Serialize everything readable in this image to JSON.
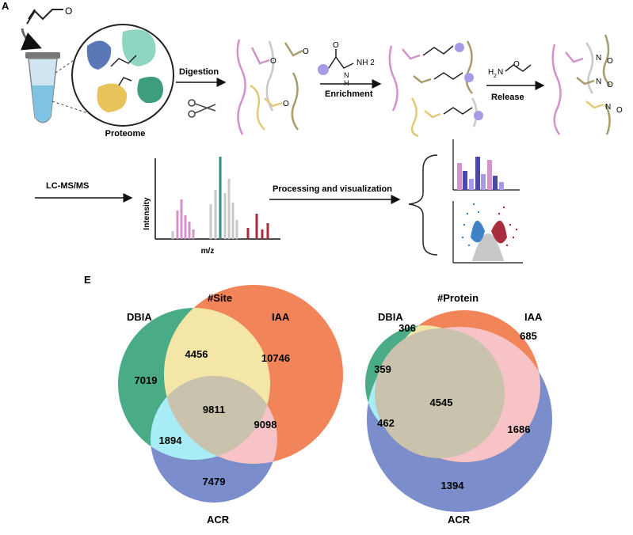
{
  "panel_a": {
    "label": "A",
    "proteome_label": "Proteome",
    "step_digestion": "Digestion",
    "step_enrichment": "Enrichment",
    "step_release": "Release",
    "step_lcms": "LC-MS/MS",
    "step_processing": "Processing and visualization",
    "axis_intensity": "Intensity",
    "axis_mz": "m/z",
    "hydrazine_h": "H",
    "hydrazine_n": "N",
    "hydrazine_nh2": "NH 2",
    "hydroxylamine_h2n": "H",
    "hydroxylamine_2": "2",
    "hydroxylamine_n": "N",
    "hydroxylamine_o": "O",
    "oxime_label": "N",
    "oxime_o": "O",
    "colors": {
      "pink": "#d392c9",
      "purple": "#a99ae8",
      "teal": "#2b8f86",
      "olive": "#a79c6e",
      "gold": "#e3c979",
      "red": "#a72c3c"
    }
  },
  "panel_e": {
    "label": "E",
    "venns": [
      {
        "title": "#Site",
        "set_labels": {
          "a": "DBIA",
          "b": "IAA",
          "c": "ACR"
        },
        "regions": {
          "a_only": "7019",
          "b_only": "10746",
          "c_only": "7479",
          "ab": "4456",
          "bc": "9098",
          "ac": "1894",
          "abc": "9811"
        }
      },
      {
        "title": "#Protein",
        "set_labels": {
          "a": "DBIA",
          "b": "IAA",
          "c": "ACR"
        },
        "regions": {
          "a_only": "359",
          "b_only": "685",
          "c_only": "1394",
          "ab": "306",
          "bc": "1686",
          "ac": "462",
          "abc": "4545"
        }
      }
    ],
    "colors": {
      "a": "#4aab87",
      "b": "#f2845a",
      "c": "#7b8dcb",
      "ab": "#f4e6a6",
      "bc": "#f7c3c6",
      "ac": "#a8ecf6",
      "abc": "#c9c2ad"
    }
  }
}
